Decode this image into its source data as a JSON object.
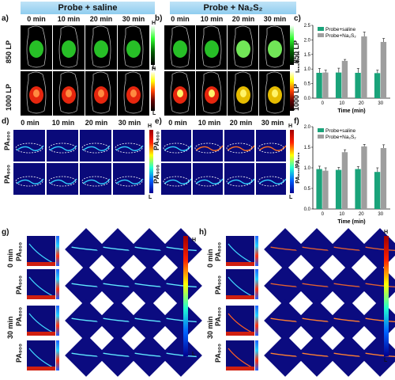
{
  "panels": {
    "a": "a)",
    "b": "b)",
    "c": "c)",
    "d": "d)",
    "e": "e)",
    "f": "f)",
    "g": "g)",
    "h": "h)"
  },
  "headers": {
    "left": "Probe + saline",
    "right": "Probe + Na₂S₂"
  },
  "times": [
    "0 min",
    "10 min",
    "20 min",
    "30 min"
  ],
  "rows": {
    "nir850": "850 LP",
    "nir1000": "1000 LP",
    "pa800": "PA₈₀₀",
    "pa900": "PA₉₀₀",
    "g_0": "0 min",
    "g_30": "30 min"
  },
  "scale": {
    "high": "H",
    "low": "L"
  },
  "colors": {
    "saline": "#1aa37a",
    "na2s2": "#9e9e9e"
  },
  "chart_data": [
    {
      "type": "bar",
      "panel": "c",
      "ylabel": "I₈₅₀/I₁₀₀₀",
      "xlabel": "Time (min)",
      "categories": [
        "0",
        "10",
        "20",
        "30"
      ],
      "ylim": [
        0,
        2.5
      ],
      "yticks": [
        "0.0",
        "0.5",
        "1.0",
        "1.5",
        "2.0",
        "2.5"
      ],
      "legend": "top-left",
      "series": [
        {
          "name": "Probe+saline",
          "values": [
            0.87,
            0.88,
            0.87,
            0.86
          ],
          "errors": [
            0.15,
            0.15,
            0.15,
            0.1
          ]
        },
        {
          "name": "Probe+Na₂S₂",
          "values": [
            0.88,
            1.28,
            2.12,
            1.93
          ],
          "errors": [
            0.08,
            0.05,
            0.15,
            0.12
          ]
        }
      ]
    },
    {
      "type": "bar",
      "panel": "f",
      "ylabel": "PA₈₀₀/PA₉₀₀",
      "xlabel": "Time (min)",
      "categories": [
        "0",
        "10",
        "20",
        "30"
      ],
      "ylim": [
        0,
        2.0
      ],
      "yticks": [
        "0.0",
        "0.5",
        "1.0",
        "1.5",
        "2.0"
      ],
      "legend": "top-left",
      "series": [
        {
          "name": "Probe+saline",
          "values": [
            0.97,
            0.95,
            0.97,
            0.9
          ],
          "errors": [
            0.07,
            0.06,
            0.06,
            0.1
          ]
        },
        {
          "name": "Probe+Na₂S₂",
          "values": [
            0.93,
            1.38,
            1.52,
            1.48
          ],
          "errors": [
            0.07,
            0.06,
            0.05,
            0.08
          ]
        }
      ]
    }
  ]
}
